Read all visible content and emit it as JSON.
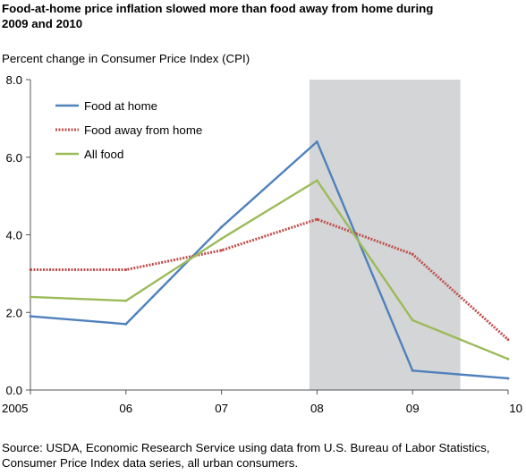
{
  "title_lines": [
    "Food-at-home price inflation slowed more than food away from home during",
    "2009 and 2010"
  ],
  "source_lines": [
    "Source: USDA, Economic Research Service using data from U.S. Bureau of Labor Statistics,",
    "Consumer Price Index data series, all urban consumers."
  ],
  "chart_data": {
    "type": "line",
    "title": "Food-at-home price inflation slowed more than food away from home during 2009 and 2010",
    "subtitle": "Percent change in Consumer Price Index (CPI)",
    "xlabel": "",
    "ylabel": "",
    "x": [
      2005,
      2006,
      2007,
      2008,
      2009,
      2010
    ],
    "x_tick_labels": [
      "2005",
      "06",
      "07",
      "08",
      "09",
      "10"
    ],
    "y_tick_labels": [
      "0.0",
      "2.0",
      "4.0",
      "6.0",
      "8.0"
    ],
    "y_ticks": [
      0,
      2,
      4,
      6,
      8
    ],
    "ylim": [
      0,
      8
    ],
    "xlim": [
      2005,
      2010
    ],
    "grid": false,
    "legend_position": "top-left",
    "shaded_region": {
      "x_start": 2007.92,
      "x_end": 2009.5,
      "color": "#d4d5d6"
    },
    "series": [
      {
        "name": "Food at home",
        "color": "#4f81bd",
        "style": "solid",
        "values": [
          1.9,
          1.7,
          4.2,
          6.4,
          0.5,
          0.3
        ]
      },
      {
        "name": "Food away from home",
        "color": "#c0504d",
        "style": "dotted",
        "values": [
          3.1,
          3.1,
          3.6,
          4.4,
          3.5,
          1.3
        ]
      },
      {
        "name": "All food",
        "color": "#9bbb59",
        "style": "solid",
        "values": [
          2.4,
          2.3,
          3.9,
          5.4,
          1.8,
          0.8
        ]
      }
    ]
  }
}
